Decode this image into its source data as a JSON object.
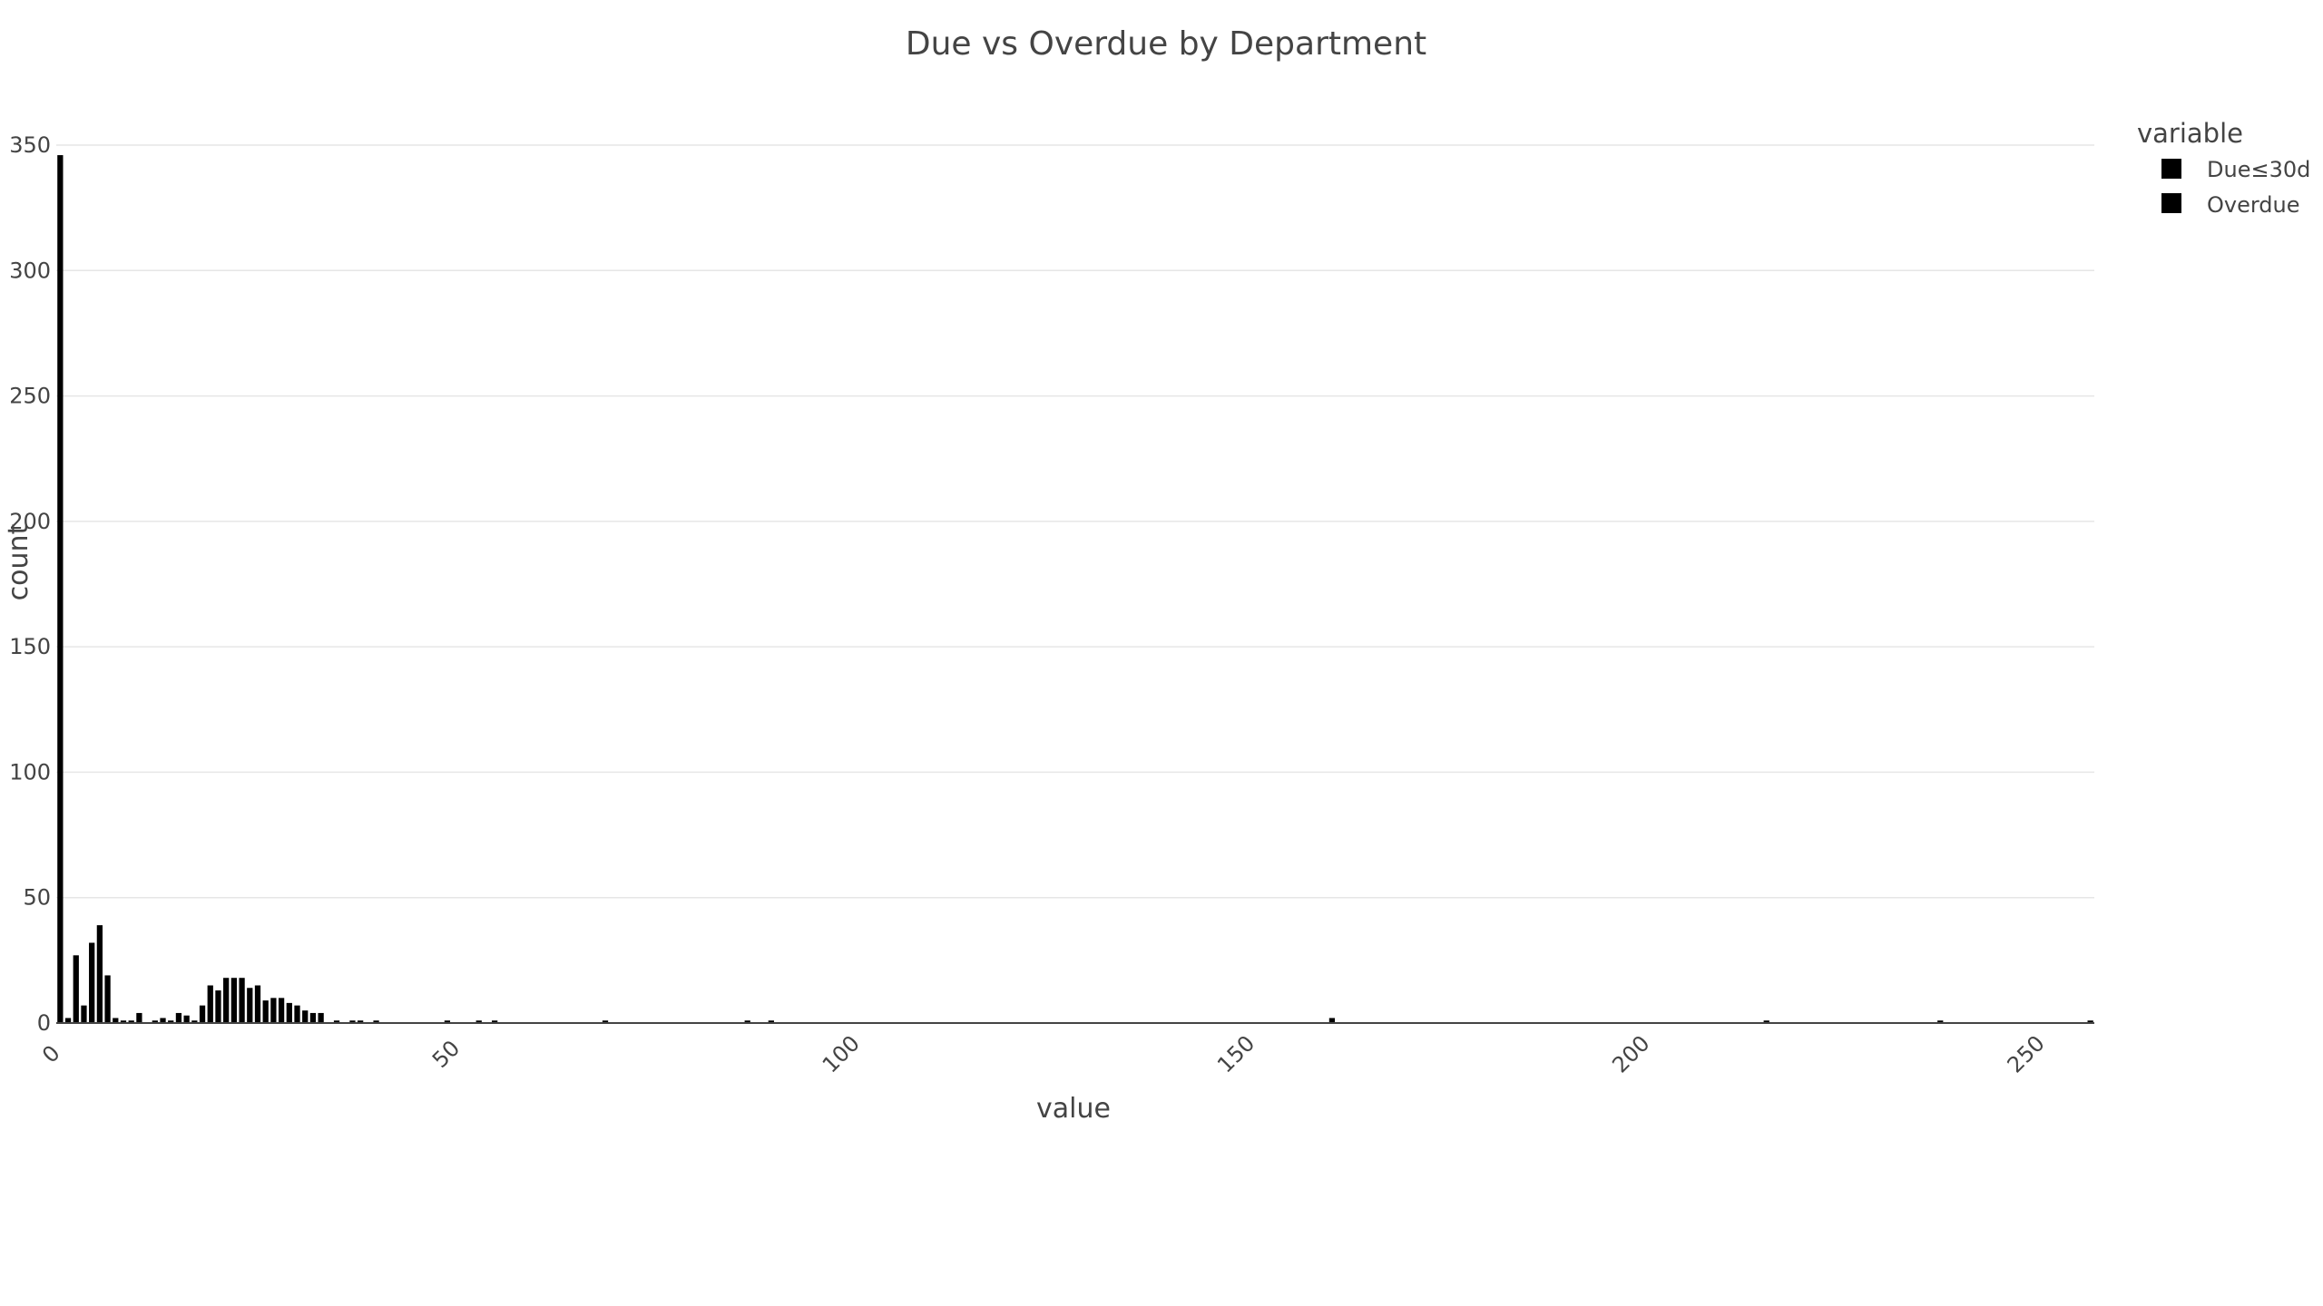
{
  "chart_data": {
    "type": "bar",
    "title": "Due vs Overdue by Department",
    "xlabel": "value",
    "ylabel": "count",
    "xlim": [
      0,
      258
    ],
    "ylim": [
      0,
      350
    ],
    "xticks": [
      0,
      50,
      100,
      150,
      200,
      250
    ],
    "yticks": [
      0,
      50,
      100,
      150,
      200,
      250,
      300,
      350
    ],
    "grid": true,
    "bin_width": 1,
    "legend": {
      "title": "variable",
      "placement": "top-right"
    },
    "series": [
      {
        "name": "Due≤30d",
        "color": "#000000",
        "points": [
          {
            "x": 0,
            "y": 346
          },
          {
            "x": 1,
            "y": 2
          },
          {
            "x": 2,
            "y": 27
          },
          {
            "x": 3,
            "y": 7
          },
          {
            "x": 4,
            "y": 32
          },
          {
            "x": 5,
            "y": 39
          },
          {
            "x": 6,
            "y": 19
          },
          {
            "x": 7,
            "y": 2
          },
          {
            "x": 8,
            "y": 1
          },
          {
            "x": 9,
            "y": 1
          },
          {
            "x": 10,
            "y": 4
          },
          {
            "x": 12,
            "y": 1
          },
          {
            "x": 13,
            "y": 2
          },
          {
            "x": 14,
            "y": 1
          },
          {
            "x": 15,
            "y": 4
          },
          {
            "x": 16,
            "y": 3
          },
          {
            "x": 17,
            "y": 1
          },
          {
            "x": 18,
            "y": 7
          },
          {
            "x": 19,
            "y": 15
          },
          {
            "x": 20,
            "y": 13
          },
          {
            "x": 21,
            "y": 18
          },
          {
            "x": 22,
            "y": 18
          },
          {
            "x": 23,
            "y": 18
          },
          {
            "x": 24,
            "y": 14
          },
          {
            "x": 25,
            "y": 15
          },
          {
            "x": 26,
            "y": 9
          },
          {
            "x": 27,
            "y": 10
          },
          {
            "x": 28,
            "y": 10
          },
          {
            "x": 29,
            "y": 8
          },
          {
            "x": 30,
            "y": 7
          },
          {
            "x": 31,
            "y": 5
          },
          {
            "x": 32,
            "y": 4
          },
          {
            "x": 33,
            "y": 4
          },
          {
            "x": 35,
            "y": 1
          },
          {
            "x": 37,
            "y": 1
          },
          {
            "x": 38,
            "y": 1
          },
          {
            "x": 40,
            "y": 1
          },
          {
            "x": 49,
            "y": 1
          },
          {
            "x": 53,
            "y": 1
          },
          {
            "x": 55,
            "y": 1
          },
          {
            "x": 69,
            "y": 1
          },
          {
            "x": 87,
            "y": 1
          },
          {
            "x": 90,
            "y": 1
          },
          {
            "x": 161,
            "y": 2
          },
          {
            "x": 216,
            "y": 1
          },
          {
            "x": 238,
            "y": 1
          },
          {
            "x": 257,
            "y": 1
          }
        ]
      },
      {
        "name": "Overdue",
        "color": "#000000",
        "points": []
      }
    ]
  }
}
